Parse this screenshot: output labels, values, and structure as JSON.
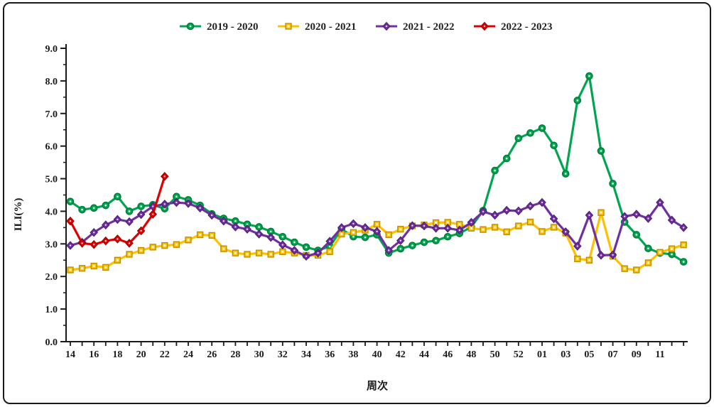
{
  "figure": {
    "background": "#ffffff",
    "border_color": "#1a1a1a"
  },
  "chart_data": {
    "type": "line",
    "title": "",
    "xlabel": "周次",
    "ylabel": "ILI(%)",
    "ylim": [
      0,
      9
    ],
    "ytick_step": 1.0,
    "ytick_labels": [
      "0.0",
      "1.0",
      "2.0",
      "3.0",
      "4.0",
      "5.0",
      "6.0",
      "7.0",
      "8.0",
      "9.0"
    ],
    "grid": false,
    "legend_position": "top-center",
    "x_categories": [
      "14",
      "15",
      "16",
      "17",
      "18",
      "19",
      "20",
      "21",
      "22",
      "23",
      "24",
      "25",
      "26",
      "27",
      "28",
      "29",
      "30",
      "31",
      "32",
      "33",
      "34",
      "35",
      "36",
      "37",
      "38",
      "39",
      "40",
      "41",
      "42",
      "43",
      "44",
      "45",
      "46",
      "47",
      "48",
      "49",
      "50",
      "51",
      "52",
      "53",
      "01",
      "02",
      "03",
      "04",
      "05",
      "06",
      "07",
      "08",
      "09",
      "10",
      "11",
      "12",
      "13"
    ],
    "x_labeled_ticks": [
      "14",
      "16",
      "18",
      "20",
      "22",
      "24",
      "26",
      "28",
      "30",
      "32",
      "34",
      "36",
      "38",
      "40",
      "42",
      "44",
      "46",
      "48",
      "50",
      "52",
      "01",
      "03",
      "05",
      "07",
      "09",
      "11"
    ],
    "series": [
      {
        "name": "2019 - 2020",
        "color": "#00A550",
        "marker_edge": "#007A38",
        "marker": "circle",
        "values": [
          4.3,
          4.05,
          4.1,
          4.18,
          4.45,
          4.0,
          4.15,
          4.2,
          4.08,
          4.45,
          4.35,
          4.18,
          3.92,
          3.78,
          3.7,
          3.6,
          3.52,
          3.38,
          3.22,
          3.05,
          2.9,
          2.8,
          2.92,
          3.45,
          3.22,
          3.2,
          3.28,
          2.72,
          2.85,
          2.95,
          3.05,
          3.1,
          3.22,
          3.32,
          3.52,
          4.02,
          5.25,
          5.62,
          6.24,
          6.4,
          6.55,
          6.02,
          5.15,
          7.4,
          8.15,
          5.85,
          4.85,
          3.67,
          3.28,
          2.86,
          2.72,
          2.68,
          2.45
        ]
      },
      {
        "name": "2020 - 2021",
        "color": "#FFC000",
        "marker_edge": "#B98C00",
        "marker": "square",
        "values": [
          2.2,
          2.25,
          2.32,
          2.28,
          2.5,
          2.68,
          2.8,
          2.9,
          2.95,
          2.98,
          3.12,
          3.28,
          3.26,
          2.85,
          2.72,
          2.68,
          2.72,
          2.68,
          2.76,
          2.72,
          2.65,
          2.65,
          2.76,
          3.3,
          3.35,
          3.42,
          3.6,
          3.28,
          3.45,
          3.55,
          3.58,
          3.65,
          3.66,
          3.6,
          3.48,
          3.44,
          3.51,
          3.37,
          3.55,
          3.67,
          3.38,
          3.51,
          3.33,
          2.54,
          2.5,
          3.96,
          2.62,
          2.24,
          2.2,
          2.42,
          2.74,
          2.85,
          2.97
        ]
      },
      {
        "name": "2021 - 2022",
        "color": "#7030A0",
        "marker_edge": "#4F1F78",
        "marker": "diamond",
        "values": [
          2.95,
          3.05,
          3.35,
          3.58,
          3.75,
          3.68,
          3.9,
          4.15,
          4.22,
          4.27,
          4.24,
          4.1,
          3.88,
          3.7,
          3.52,
          3.45,
          3.3,
          3.2,
          2.97,
          2.8,
          2.62,
          2.72,
          3.08,
          3.5,
          3.62,
          3.5,
          3.38,
          2.8,
          3.1,
          3.56,
          3.55,
          3.48,
          3.48,
          3.42,
          3.66,
          3.99,
          3.88,
          4.03,
          4.01,
          4.16,
          4.27,
          3.77,
          3.37,
          2.93,
          3.88,
          2.65,
          2.66,
          3.84,
          3.91,
          3.78,
          4.27,
          3.73,
          3.5
        ]
      },
      {
        "name": "2022 - 2023",
        "color": "#E00000",
        "marker_edge": "#9E0000",
        "marker": "diamond",
        "values": [
          3.7,
          3.02,
          2.98,
          3.09,
          3.15,
          3.02,
          3.4,
          3.91,
          5.07,
          null,
          null,
          null,
          null,
          null,
          null,
          null,
          null,
          null,
          null,
          null,
          null,
          null,
          null,
          null,
          null,
          null,
          null,
          null,
          null,
          null,
          null,
          null,
          null,
          null,
          null,
          null,
          null,
          null,
          null,
          null,
          null,
          null,
          null,
          null,
          null,
          null,
          null,
          null,
          null,
          null,
          null,
          null,
          null
        ]
      }
    ]
  }
}
